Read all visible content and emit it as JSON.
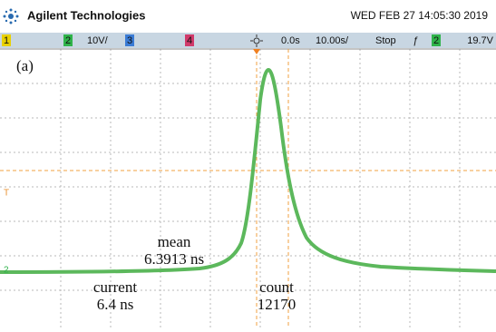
{
  "header": {
    "brand": "Agilent Technologies",
    "datetime": "WED FEB 27 14:05:30 2019"
  },
  "toolbar": {
    "ch1": "1",
    "ch2": "2",
    "ch2_scale": "10V/",
    "ch3": "3",
    "ch4": "4",
    "delay": "0.0s",
    "timebase": "10.00s/",
    "state": "Stop",
    "trig_source": "2",
    "trig_level": "19.7V"
  },
  "screen": {
    "panel_label": "(a)",
    "ground_marker": "2",
    "trigger_marker": "T",
    "annotations": {
      "mean_label": "mean",
      "mean_value": "6.3913 ns",
      "current_label": "current",
      "current_value": "6.4 ns",
      "count_label": "count",
      "count_value": "12170"
    }
  }
}
